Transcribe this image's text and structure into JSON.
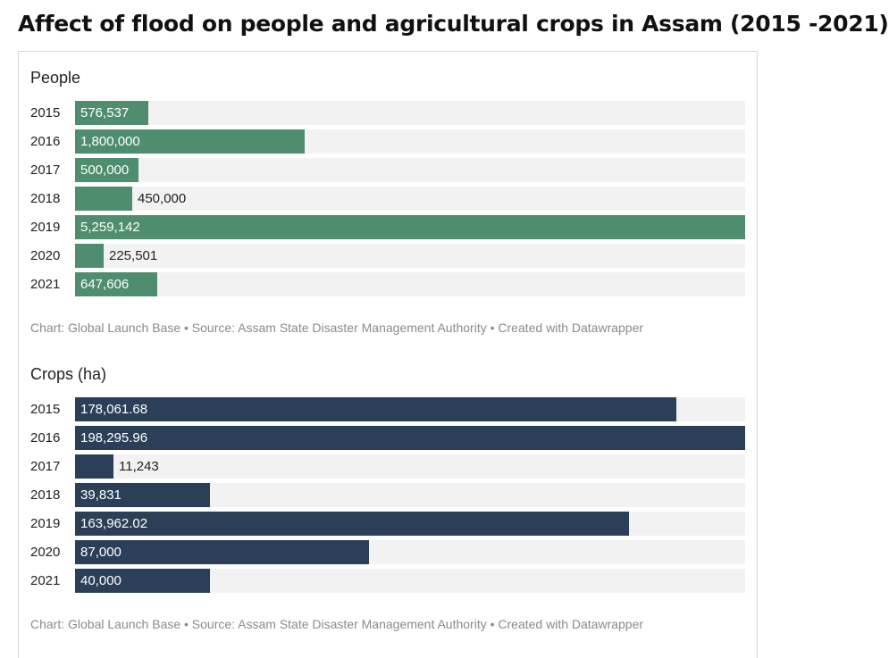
{
  "page_title": "Affect of flood on people and agricultural crops in Assam (2015 -2021)",
  "chart_data": [
    {
      "type": "bar",
      "orientation": "horizontal",
      "title": "People",
      "categories": [
        "2015",
        "2016",
        "2017",
        "2018",
        "2019",
        "2020",
        "2021"
      ],
      "values": [
        576537,
        1800000,
        500000,
        450000,
        5259142,
        225501,
        647606
      ],
      "value_labels": [
        "576,537",
        "1,800,000",
        "500,000",
        "450,000",
        "5,259,142",
        "225,501",
        "647,606"
      ],
      "xlim": [
        0,
        5259142
      ],
      "color": "#4e8d6e",
      "footer": "Chart: Global Launch Base • Source: Assam State Disaster Management Authority • Created with Datawrapper"
    },
    {
      "type": "bar",
      "orientation": "horizontal",
      "title": "Crops (ha)",
      "categories": [
        "2015",
        "2016",
        "2017",
        "2018",
        "2019",
        "2020",
        "2021"
      ],
      "values": [
        178061.68,
        198295.96,
        11243,
        39831,
        163962.02,
        87000,
        40000
      ],
      "value_labels": [
        "178,061.68",
        "198,295.96",
        "11,243",
        "39,831",
        "163,962.02",
        "87,000",
        "40,000"
      ],
      "xlim": [
        0,
        198295.96
      ],
      "color": "#2b4058",
      "footer": "Chart: Global Launch Base • Source: Assam State Disaster Management Authority • Created with Datawrapper"
    }
  ]
}
